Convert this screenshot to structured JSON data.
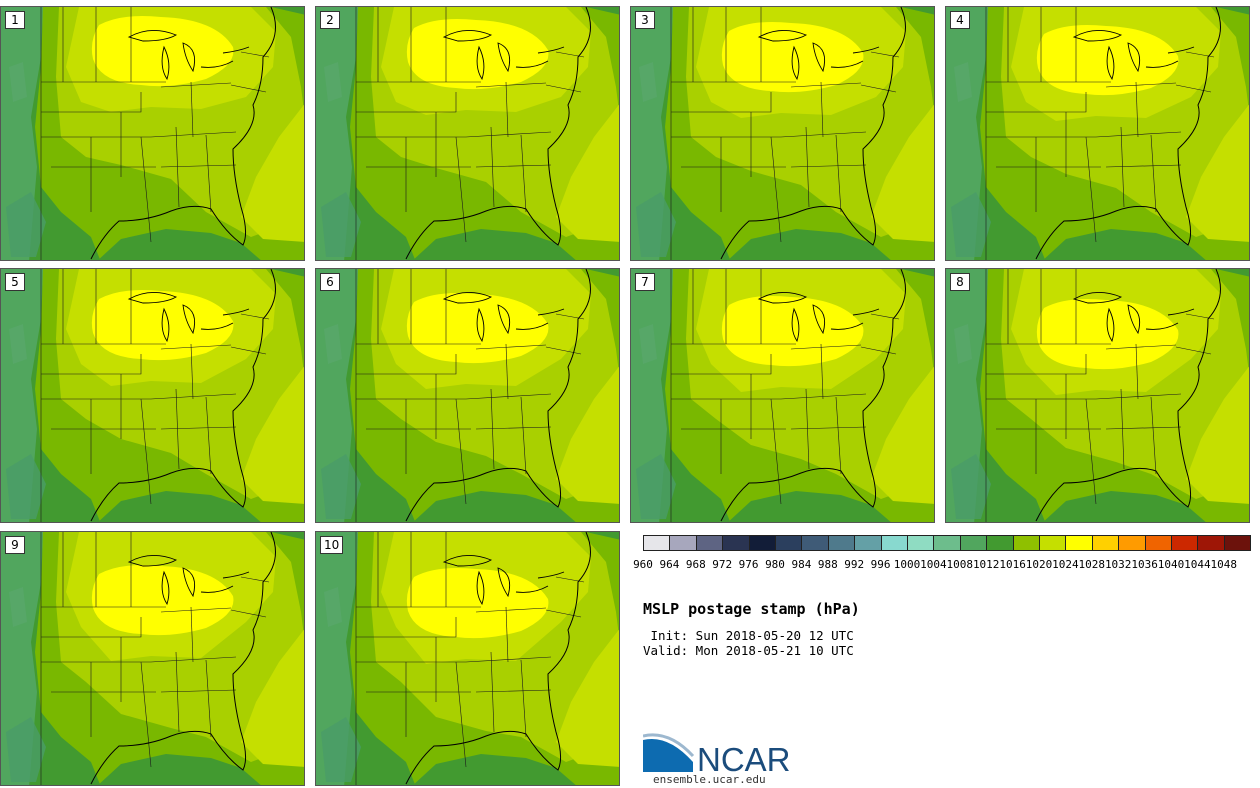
{
  "panels": [
    {
      "label": "1"
    },
    {
      "label": "2"
    },
    {
      "label": "3"
    },
    {
      "label": "4"
    },
    {
      "label": "5"
    },
    {
      "label": "6"
    },
    {
      "label": "7"
    },
    {
      "label": "8"
    },
    {
      "label": "9"
    },
    {
      "label": "10"
    }
  ],
  "colorbar": {
    "labels": [
      "960",
      "964",
      "968",
      "972",
      "976",
      "980",
      "984",
      "988",
      "992",
      "996",
      "1000",
      "1004",
      "1008",
      "1012",
      "1016",
      "1020",
      "1024",
      "1028",
      "1032",
      "1036",
      "1040",
      "1044",
      "1048"
    ],
    "colors": [
      "#e6e6ea",
      "#a7a7bd",
      "#5e6483",
      "#2a3452",
      "#121d38",
      "#2b3f5e",
      "#3f5b77",
      "#4f7a8c",
      "#64a0a6",
      "#88d9cf",
      "#8fdcc2",
      "#6dbd8c",
      "#51a65e",
      "#429a30",
      "#8fc000",
      "#c5df00",
      "#ffff00",
      "#ffd000",
      "#ff9b00",
      "#f06400",
      "#cc2800",
      "#9e1606",
      "#6c120c"
    ]
  },
  "title": "MSLP postage stamp (hPa)",
  "init_line": " Init: Sun 2018-05-20 12 UTC",
  "valid_line": "Valid: Mon 2018-05-21 10 UTC",
  "logo": {
    "text": "NCAR",
    "url": "ensemble.ucar.edu"
  },
  "map_colors": {
    "c1008": "#51a65e",
    "c1012": "#429a30",
    "c1016": "#79b800",
    "c1020": "#a9d000",
    "c1024": "#c5df00",
    "c1028": "#ffff00",
    "border": "#1a1a1a"
  }
}
